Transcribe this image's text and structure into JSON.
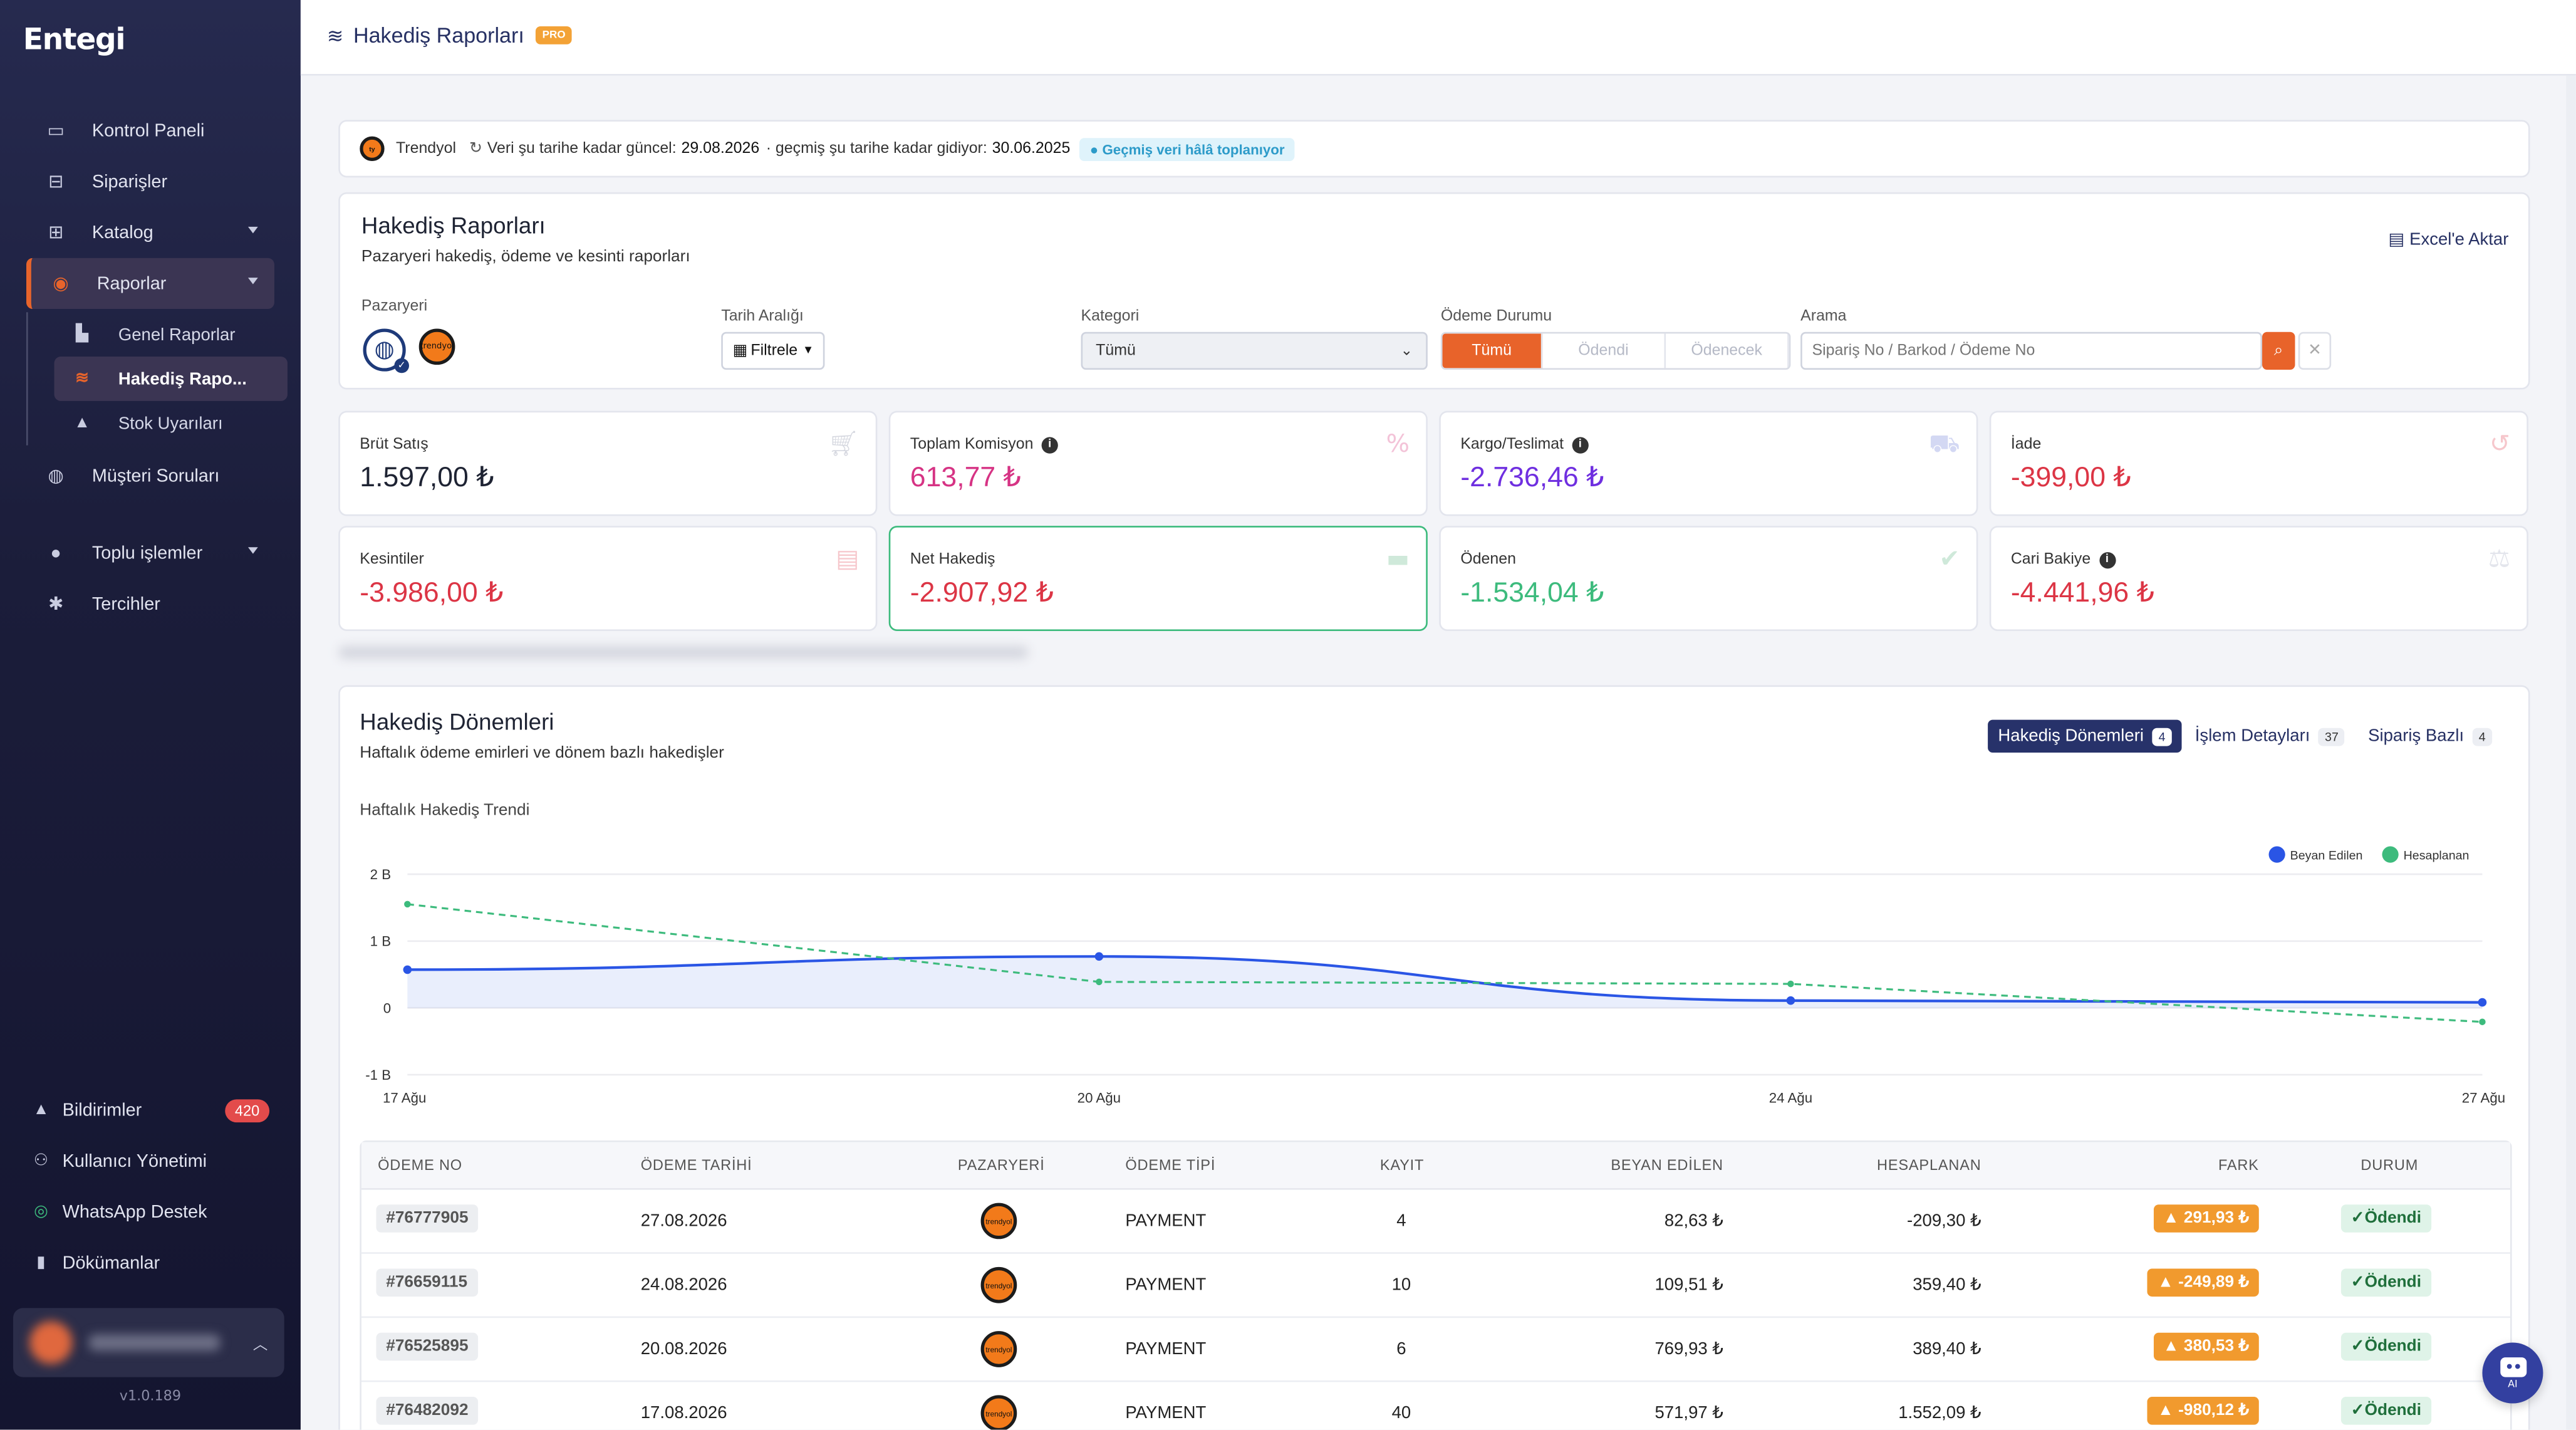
{
  "app": {
    "logo": "Entegi",
    "version": "v1.0.189"
  },
  "sidebar": {
    "items": [
      {
        "label": "Kontrol Paneli",
        "icon": "laptop-icon"
      },
      {
        "label": "Siparişler",
        "icon": "inbox-icon"
      },
      {
        "label": "Katalog",
        "icon": "grid-icon"
      },
      {
        "label": "Raporlar",
        "icon": "globe-icon"
      },
      {
        "label": "Müşteri Soruları",
        "icon": "chat-icon"
      },
      {
        "label": "Toplu işlemler",
        "icon": "fire-icon"
      },
      {
        "label": "Tercihler",
        "icon": "gear-icon"
      }
    ],
    "sub_items": [
      {
        "label": "Genel Raporlar",
        "icon": "chart-icon"
      },
      {
        "label": "Hakediş Rapo...",
        "icon": "coins-icon"
      },
      {
        "label": "Stok Uyarıları",
        "icon": "bell-icon"
      }
    ],
    "bottom": [
      {
        "label": "Bildirimler",
        "badge": "420",
        "icon": "bell-icon"
      },
      {
        "label": "Kullanıcı Yönetimi",
        "icon": "users-icon"
      },
      {
        "label": "WhatsApp Destek",
        "icon": "whatsapp-icon"
      },
      {
        "label": "Dökümanlar",
        "icon": "book-icon"
      }
    ]
  },
  "header": {
    "title": "Hakediş Raporları",
    "badge": "PRO"
  },
  "info_bar": {
    "marketplace": "Trendyol",
    "updated_label": "Veri şu tarihe kadar güncel:",
    "updated_date": "29.08.2026",
    "history_label": "· geçmiş şu tarihe kadar gidiyor:",
    "history_date": "30.06.2025",
    "pill": "● Geçmiş veri hâlâ toplanıyor"
  },
  "filters": {
    "title": "Hakediş Raporları",
    "subtitle": "Pazaryeri hakediş, ödeme ve kesinti raporları",
    "excel": "Excel'e Aktar",
    "marketplace_label": "Pazaryeri",
    "marketplace_logo": "trendyol",
    "date_label": "Tarih Aralığı",
    "date_button": "Filtrele",
    "category_label": "Kategori",
    "category_value": "Tümü",
    "payment_label": "Ödeme Durumu",
    "payment_options": [
      "Tümü",
      "Ödendi",
      "Ödenecek"
    ],
    "search_label": "Arama",
    "search_placeholder": "Sipariş No / Barkod / Ödeme No"
  },
  "stats": [
    {
      "label": "Brüt Satış",
      "value": "1.597,00 ₺",
      "color": "#1e2333",
      "icon": "cart-icon",
      "info": false
    },
    {
      "label": "Toplam Komisyon",
      "value": "613,77 ₺",
      "color": "#d63384",
      "icon": "percent-icon",
      "info": true
    },
    {
      "label": "Kargo/Teslimat",
      "value": "-2.736,46 ₺",
      "color": "#6f2fe0",
      "icon": "truck-icon",
      "info": true
    },
    {
      "label": "İade",
      "value": "-399,00 ₺",
      "color": "#dc3545",
      "icon": "undo-icon",
      "info": false
    },
    {
      "label": "Kesintiler",
      "value": "-3.986,00 ₺",
      "color": "#dc3545",
      "icon": "receipt-icon",
      "info": false
    },
    {
      "label": "Net Hakediş",
      "value": "-2.907,92 ₺",
      "color": "#dc3545",
      "icon": "wallet-icon",
      "info": false
    },
    {
      "label": "Ödenen",
      "value": "-1.534,04 ₺",
      "color": "#3dbb7d",
      "icon": "check-circle-icon",
      "info": false
    },
    {
      "label": "Cari Bakiye",
      "value": "-4.441,96 ₺",
      "color": "#dc3545",
      "icon": "scale-icon",
      "info": true
    }
  ],
  "periods": {
    "title": "Hakediş Dönemleri",
    "subtitle": "Haftalık ödeme emirleri ve dönem bazlı hakedişler",
    "tabs": [
      {
        "label": "Hakediş Dönemleri",
        "count": "4"
      },
      {
        "label": "İşlem Detayları",
        "count": "37"
      },
      {
        "label": "Sipariş Bazlı",
        "count": "4"
      }
    ],
    "trend_title": "Haftalık Hakediş Trendi"
  },
  "chart_data": {
    "type": "line",
    "x": [
      "17 Ağu",
      "20 Ağu",
      "24 Ağu",
      "27 Ağu"
    ],
    "y_ticks": [
      "2 B",
      "1 B",
      "0",
      "-1 B"
    ],
    "ylim": [
      -1000,
      2000
    ],
    "series": [
      {
        "name": "Beyan Edilen",
        "values": [
          571.97,
          769.93,
          109.51,
          82.63
        ],
        "color": "#2a55e5",
        "style": "solid-area"
      },
      {
        "name": "Hesaplanan",
        "values": [
          1552.09,
          389.4,
          359.4,
          -209.3
        ],
        "color": "#3dbb7d",
        "style": "dashed"
      }
    ],
    "legend": "top-right",
    "grid": true
  },
  "table": {
    "headers": [
      "ÖDEME NO",
      "ÖDEME TARİHİ",
      "PAZARYERİ",
      "ÖDEME TİPİ",
      "KAYIT",
      "BEYAN EDİLEN",
      "HESAPLANAN",
      "FARK",
      "DURUM"
    ],
    "rows": [
      {
        "no": "#76777905",
        "date": "27.08.2026",
        "type": "PAYMENT",
        "count": "4",
        "declared": "82,63 ₺",
        "calc": "-209,30 ₺",
        "diff": "291,93 ₺",
        "status": "Ödendi"
      },
      {
        "no": "#76659115",
        "date": "24.08.2026",
        "type": "PAYMENT",
        "count": "10",
        "declared": "109,51 ₺",
        "calc": "359,40 ₺",
        "diff": "-249,89 ₺",
        "status": "Ödendi"
      },
      {
        "no": "#76525895",
        "date": "20.08.2026",
        "type": "PAYMENT",
        "count": "6",
        "declared": "769,93 ₺",
        "calc": "389,40 ₺",
        "diff": "380,53 ₺",
        "status": "Ödendi"
      },
      {
        "no": "#76482092",
        "date": "17.08.2026",
        "type": "PAYMENT",
        "count": "40",
        "declared": "571,97 ₺",
        "calc": "1.552,09 ₺",
        "diff": "-980,12 ₺",
        "status": "Ödendi"
      }
    ]
  },
  "ai_button": {
    "label": "AI"
  }
}
